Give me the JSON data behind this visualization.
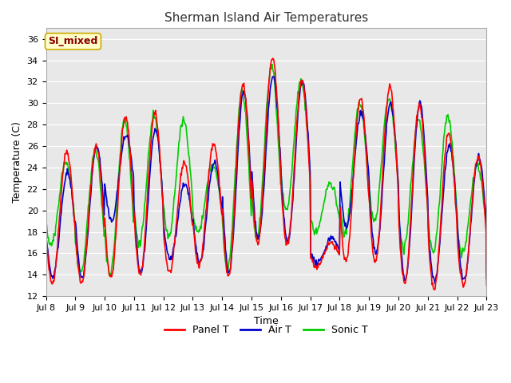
{
  "title": "Sherman Island Air Temperatures",
  "xlabel": "Time",
  "ylabel": "Temperature (C)",
  "ylim": [
    12,
    37
  ],
  "yticks": [
    12,
    14,
    16,
    18,
    20,
    22,
    24,
    26,
    28,
    30,
    32,
    34,
    36
  ],
  "fig_bg_color": "#ffffff",
  "plot_bg_color": "#e8e8e8",
  "annotation_text": "SI_mixed",
  "annotation_bg": "#ffffcc",
  "annotation_border": "#ccaa00",
  "annotation_text_color": "#8b0000",
  "legend_items": [
    "Panel T",
    "Air T",
    "Sonic T"
  ],
  "line_colors": [
    "#ff0000",
    "#0000cc",
    "#00cc00"
  ],
  "line_width": 1.2,
  "days": [
    "Jul 8",
    "Jul 9",
    "Jul 10",
    "Jul 11",
    "Jul 12",
    "Jul 13",
    "Jul 14",
    "Jul 15",
    "Jul 16",
    "Jul 17",
    "Jul 18",
    "Jul 19",
    "Jul 20",
    "Jul 21",
    "Jul 22",
    "Jul 23"
  ],
  "n_days": 15,
  "pts_per_day": 48,
  "daily_max_panel": [
    25.5,
    26.0,
    28.8,
    29.0,
    24.5,
    26.2,
    31.7,
    34.2,
    32.0,
    17.0,
    30.5,
    31.5,
    29.8,
    27.2,
    25.0,
    13.0
  ],
  "daily_min_panel": [
    13.2,
    13.2,
    13.7,
    14.0,
    14.2,
    14.8,
    13.8,
    17.0,
    16.8,
    14.8,
    15.2,
    15.2,
    13.2,
    12.7,
    13.0,
    13.0
  ],
  "daily_max_air": [
    23.5,
    26.0,
    27.0,
    27.5,
    22.5,
    24.5,
    31.0,
    32.5,
    32.0,
    17.5,
    29.0,
    30.0,
    30.0,
    26.0,
    25.0,
    13.5
  ],
  "daily_min_air": [
    13.8,
    13.7,
    19.0,
    14.2,
    15.5,
    15.2,
    14.2,
    17.5,
    17.0,
    15.0,
    18.5,
    16.0,
    13.5,
    13.5,
    13.5,
    13.5
  ],
  "daily_max_sonic": [
    24.5,
    25.5,
    28.5,
    28.8,
    28.5,
    24.2,
    31.0,
    33.5,
    32.0,
    22.5,
    30.0,
    30.5,
    28.5,
    28.8,
    24.2,
    16.0
  ],
  "daily_min_sonic": [
    16.7,
    14.0,
    14.0,
    17.0,
    17.5,
    18.0,
    14.5,
    17.5,
    20.0,
    18.0,
    17.8,
    19.0,
    16.5,
    16.0,
    16.0,
    16.0
  ],
  "title_fontsize": 11,
  "axis_label_fontsize": 9,
  "tick_fontsize": 8,
  "annotation_fontsize": 9,
  "legend_fontsize": 9
}
